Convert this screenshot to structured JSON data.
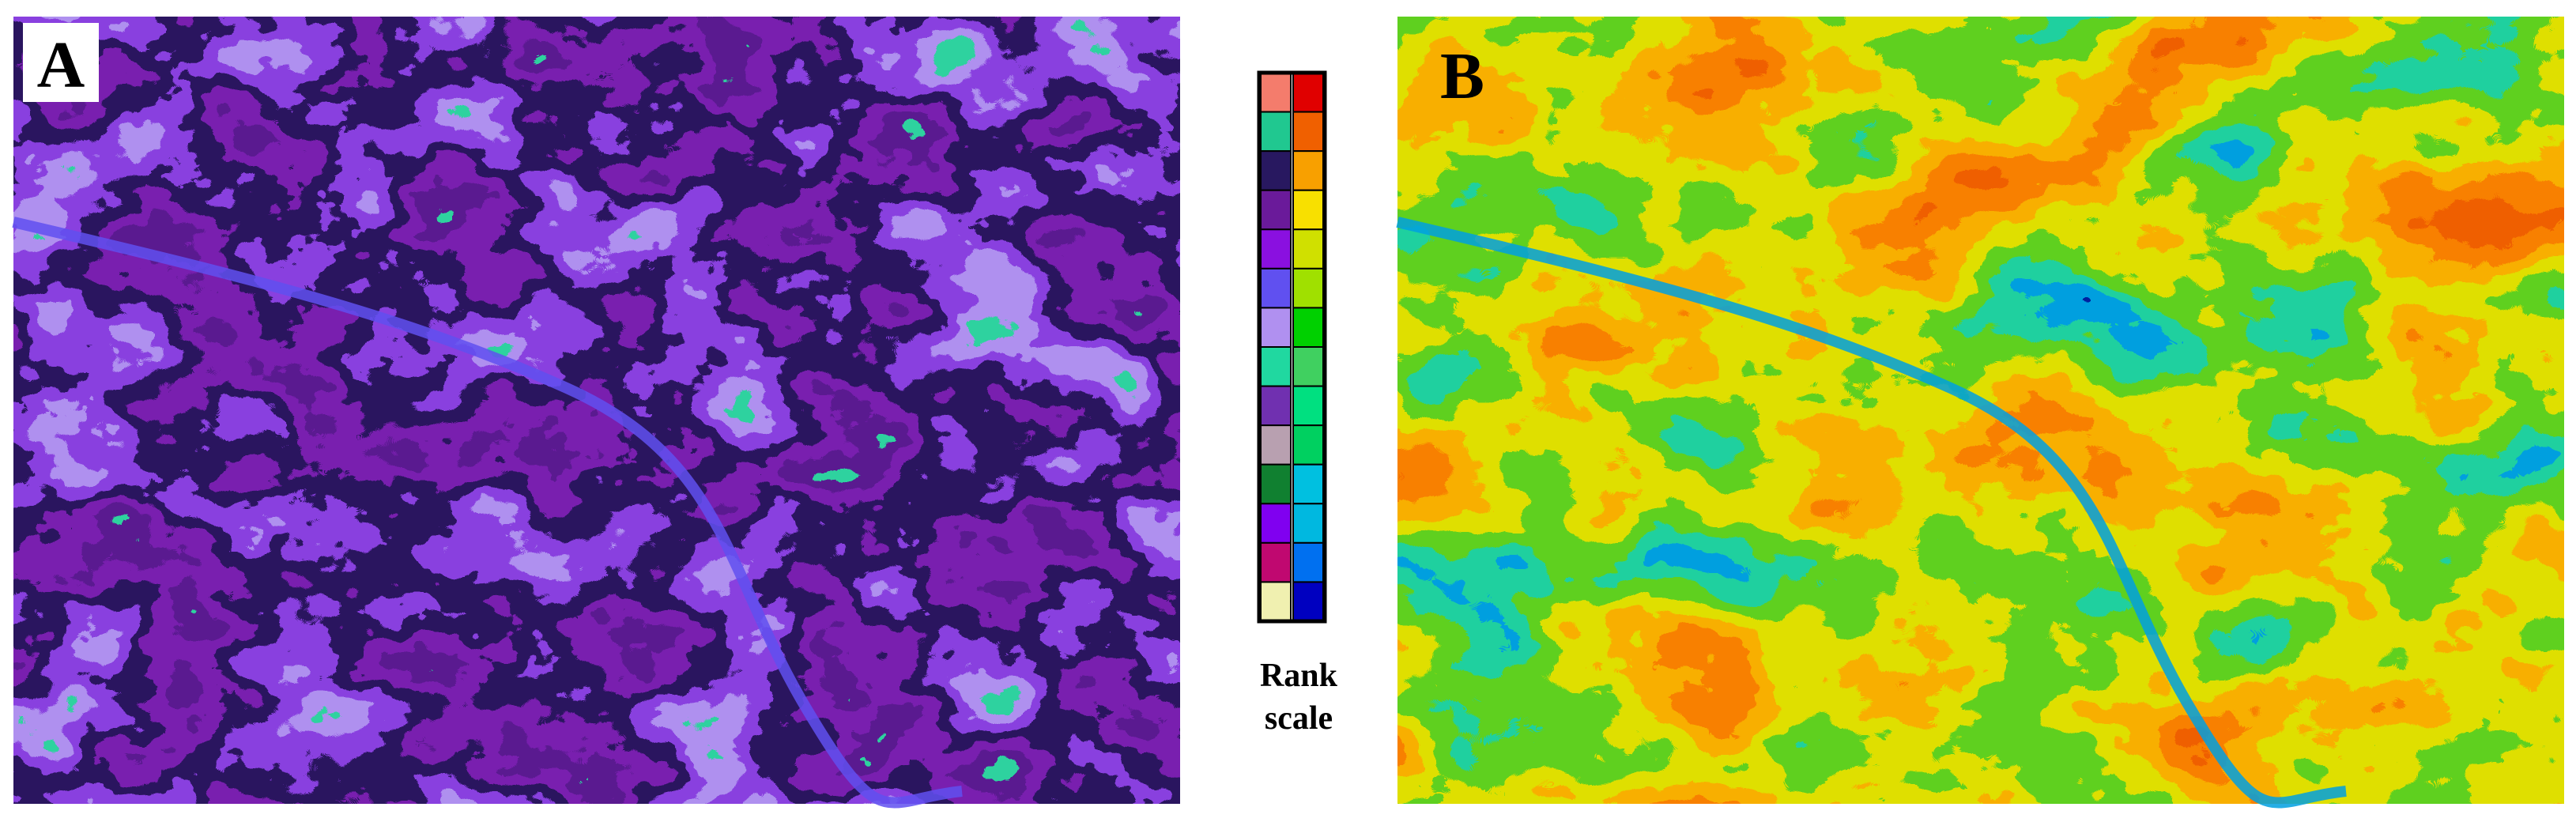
{
  "panels": [
    {
      "label": "A",
      "palette": [
        "#f47c6c",
        "#2fd3a0",
        "#5a1a90",
        "#7a20b0",
        "#2a1660",
        "#8a40e0",
        "#b090f0",
        "#2fd3a0",
        "#f47c6c"
      ]
    },
    {
      "label": "B",
      "palette": [
        "#0020a0",
        "#00a0e0",
        "#20d0a0",
        "#60d020",
        "#e0e000",
        "#f8b000",
        "#f88000",
        "#f06000",
        "#e00000"
      ]
    }
  ],
  "rank_scale": {
    "title_line1": "Rank",
    "title_line2": "scale",
    "left_colors": [
      "#f47c6c",
      "#20c890",
      "#281860",
      "#6a1a9a",
      "#8a10e0",
      "#6050f0",
      "#b090f0",
      "#20d8a0",
      "#7030b0",
      "#b8a0b0",
      "#108030",
      "#8000f0",
      "#c00870",
      "#f0f0b0"
    ],
    "right_colors": [
      "#e00000",
      "#f06000",
      "#f8a000",
      "#f8e000",
      "#d0e000",
      "#a0e000",
      "#00d000",
      "#40d060",
      "#00e080",
      "#00d060",
      "#00c0e0",
      "#00b8e0",
      "#0070f0",
      "#0000c0"
    ]
  }
}
